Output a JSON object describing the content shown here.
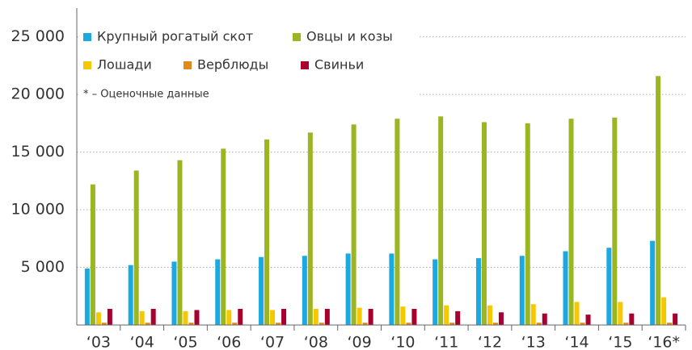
{
  "chart_data": {
    "type": "bar",
    "categories": [
      "‘03",
      "‘04",
      "‘05",
      "‘06",
      "‘07",
      "‘08",
      "‘09",
      "‘10",
      "‘11",
      "‘12",
      "‘13",
      "‘14",
      "‘15",
      "‘16*"
    ],
    "series": [
      {
        "name": "Крупный рогатый скот",
        "color": "#1ba9e1",
        "values": [
          4900,
          5200,
          5500,
          5700,
          5900,
          6000,
          6200,
          6200,
          5700,
          5800,
          6000,
          6400,
          6700,
          7300
        ]
      },
      {
        "name": "Овцы и козы",
        "color": "#9bb523",
        "values": [
          12200,
          13400,
          14300,
          15300,
          16100,
          16700,
          17400,
          17900,
          18100,
          17600,
          17500,
          17900,
          18000,
          21600
        ]
      },
      {
        "name": "Лошади",
        "color": "#f5c800",
        "values": [
          1100,
          1200,
          1200,
          1300,
          1300,
          1400,
          1500,
          1600,
          1700,
          1700,
          1800,
          2000,
          2000,
          2400
        ]
      },
      {
        "name": "Верблюды",
        "color": "#e08a1e",
        "values": [
          200,
          200,
          200,
          200,
          200,
          200,
          200,
          200,
          200,
          200,
          200,
          200,
          200,
          200
        ]
      },
      {
        "name": "Свиньи",
        "color": "#a8002f",
        "values": [
          1400,
          1400,
          1300,
          1400,
          1400,
          1400,
          1400,
          1400,
          1200,
          1100,
          1000,
          900,
          1000,
          1000
        ]
      }
    ],
    "annotation": "* – Оценочные данные",
    "ylim": [
      0,
      27500
    ],
    "yticks": [
      {
        "value": 5000,
        "label": "5 000"
      },
      {
        "value": 10000,
        "label": "10 000"
      },
      {
        "value": 15000,
        "label": "15 000"
      },
      {
        "value": 20000,
        "label": "20 000"
      },
      {
        "value": 25000,
        "label": "25 000"
      }
    ],
    "grid": true
  }
}
